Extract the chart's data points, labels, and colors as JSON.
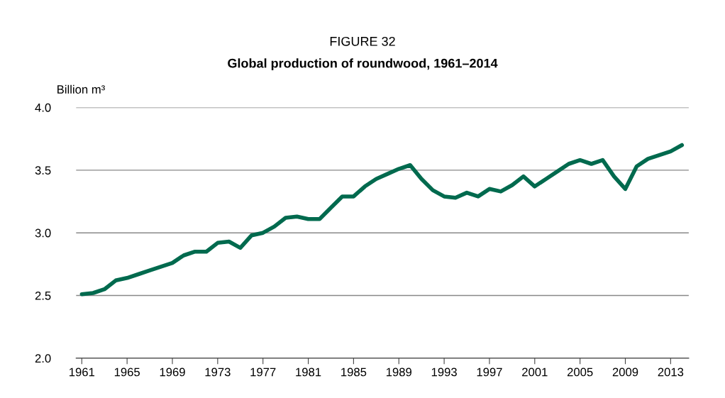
{
  "chart_data": {
    "type": "line",
    "title": "FIGURE 32",
    "subtitle": "Global production of roundwood, 1961–2014",
    "ylabel": "Billion m³",
    "x": [
      1961,
      1962,
      1963,
      1964,
      1965,
      1966,
      1967,
      1968,
      1969,
      1970,
      1971,
      1972,
      1973,
      1974,
      1975,
      1976,
      1977,
      1978,
      1979,
      1980,
      1981,
      1982,
      1983,
      1984,
      1985,
      1986,
      1987,
      1988,
      1989,
      1990,
      1991,
      1992,
      1993,
      1994,
      1995,
      1996,
      1997,
      1998,
      1999,
      2000,
      2001,
      2002,
      2003,
      2004,
      2005,
      2006,
      2007,
      2008,
      2009,
      2010,
      2011,
      2012,
      2013,
      2014
    ],
    "series": [
      {
        "color": "#006a4e",
        "values": [
          2.51,
          2.52,
          2.55,
          2.62,
          2.64,
          2.67,
          2.7,
          2.73,
          2.76,
          2.82,
          2.85,
          2.85,
          2.92,
          2.93,
          2.88,
          2.98,
          3.0,
          3.05,
          3.12,
          3.13,
          3.11,
          3.11,
          3.2,
          3.29,
          3.29,
          3.37,
          3.43,
          3.47,
          3.51,
          3.54,
          3.43,
          3.34,
          3.29,
          3.28,
          3.32,
          3.29,
          3.35,
          3.33,
          3.38,
          3.45,
          3.37,
          3.43,
          3.49,
          3.55,
          3.58,
          3.55,
          3.58,
          3.45,
          3.35,
          3.53,
          3.59,
          3.62,
          3.65,
          3.7
        ]
      }
    ],
    "xlim": [
      1960.5,
      2014.6
    ],
    "xticks": [
      1961,
      1965,
      1969,
      1973,
      1977,
      1981,
      1985,
      1989,
      1993,
      1997,
      2001,
      2005,
      2009,
      2013
    ],
    "ylim": [
      2.0,
      4.0
    ],
    "yticks": [
      {
        "value": 2.0,
        "label": "2.0"
      },
      {
        "value": 2.5,
        "label": "2.5"
      },
      {
        "value": 3.0,
        "label": "3.0"
      },
      {
        "value": 3.5,
        "label": "3.5"
      },
      {
        "value": 4.0,
        "label": "4.0"
      }
    ],
    "grid": "y",
    "marker": "none",
    "line_style": "solid"
  }
}
